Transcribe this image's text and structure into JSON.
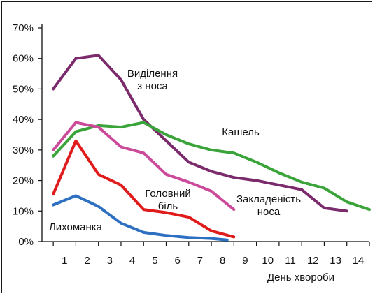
{
  "chart_data": {
    "type": "line",
    "title": "",
    "xlabel": "День хвороби",
    "ylabel": "",
    "xlim": [
      0,
      14.5
    ],
    "ylim": [
      0,
      70
    ],
    "x_ticks": [
      1,
      2,
      3,
      4,
      5,
      6,
      7,
      8,
      9,
      10,
      11,
      12,
      13,
      14
    ],
    "y_ticks": [
      "0%",
      "10%",
      "20%",
      "30%",
      "40%",
      "50%",
      "60%",
      "70%"
    ],
    "grid": false,
    "series": [
      {
        "name": "Виділення з носа",
        "label_lines": [
          "Виділення",
          "з носа"
        ],
        "color": "#7b2a6b",
        "x": [
          0.5,
          1.5,
          2.5,
          3.5,
          4.5,
          5.5,
          6.5,
          7.5,
          8.5,
          9.5,
          10.5,
          11.5,
          12.5,
          13.5
        ],
        "y": [
          50,
          60,
          61,
          53,
          40,
          33,
          26,
          23,
          21,
          20,
          18.5,
          17,
          11,
          10
        ]
      },
      {
        "name": "Кашель",
        "label_lines": [
          "Кашель"
        ],
        "color": "#3aa43a",
        "x": [
          0.5,
          1.5,
          2.5,
          3.5,
          4.5,
          5.5,
          6.5,
          7.5,
          8.5,
          9.5,
          10.5,
          11.5,
          12.5,
          13.5,
          14.5
        ],
        "y": [
          28,
          36,
          38,
          37.5,
          39,
          35,
          32,
          30,
          29,
          26,
          22.5,
          19.5,
          17.5,
          13,
          10.5
        ]
      },
      {
        "name": "Закладеність носа",
        "label_lines": [
          "Закладеність",
          "носа"
        ],
        "color": "#cc4a9a",
        "x": [
          0.5,
          1.5,
          2.5,
          3.5,
          4.5,
          5.5,
          6.5,
          7.5,
          8.5
        ],
        "y": [
          30,
          39,
          37.5,
          31,
          29,
          22,
          19.5,
          16.5,
          10.5
        ]
      },
      {
        "name": "Головний біль",
        "label_lines": [
          "Головний",
          "біль"
        ],
        "color": "#e01b1b",
        "x": [
          0.5,
          1.5,
          2.5,
          3.5,
          4.5,
          5.5,
          6.5,
          7.5,
          8.5
        ],
        "y": [
          15.5,
          33,
          22,
          18.5,
          10.5,
          9.5,
          8,
          3.5,
          1.5
        ]
      },
      {
        "name": "Лихоманка",
        "label_lines": [
          "Лихоманка"
        ],
        "color": "#2d6fc0",
        "x": [
          0.5,
          1.5,
          2.5,
          3.5,
          4.5,
          5.5,
          6.5,
          7.5,
          8.2
        ],
        "y": [
          12,
          15,
          11.5,
          6,
          3,
          2,
          1.3,
          1,
          0.5
        ]
      }
    ]
  }
}
